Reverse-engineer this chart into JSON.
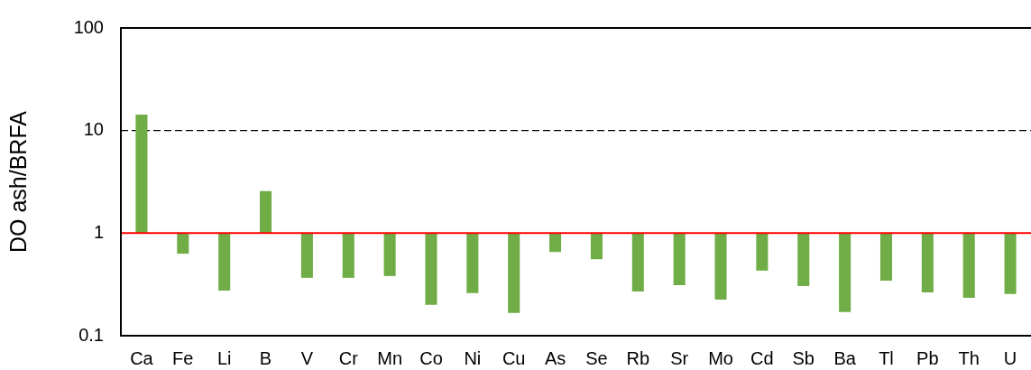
{
  "chart_data": {
    "type": "bar",
    "ylabel": "DO ash/BRFA",
    "categories": [
      "Ca",
      "Fe",
      "Li",
      "B",
      "V",
      "Cr",
      "Mn",
      "Co",
      "Ni",
      "Cu",
      "As",
      "Se",
      "Rb",
      "Sr",
      "Mo",
      "Cd",
      "Sb",
      "Ba",
      "Tl",
      "Pb",
      "Th",
      "U"
    ],
    "base": [
      1,
      1,
      1,
      1,
      1,
      1,
      1,
      1,
      1,
      1,
      1,
      1,
      1,
      1,
      1,
      1,
      1,
      1,
      1,
      1,
      1,
      1
    ],
    "values": [
      13.3,
      -0.37,
      -0.725,
      1.57,
      -0.633,
      -0.633,
      -0.618,
      -0.8,
      -0.74,
      -0.833,
      -0.345,
      -0.443,
      -0.73,
      -0.689,
      -0.775,
      -0.569,
      -0.695,
      -0.83,
      -0.656,
      -0.735,
      -0.766,
      -0.745
    ],
    "color": "#70ad47",
    "log": true,
    "ylim": [
      0.1,
      100
    ],
    "yticks": [
      0.1,
      1,
      10,
      100
    ],
    "ref_lines": [
      {
        "axis": "y",
        "value": 1,
        "color": "#ff0000"
      },
      {
        "axis": "y",
        "value": 10,
        "color": "#000000",
        "line_style": "dashed"
      }
    ]
  }
}
